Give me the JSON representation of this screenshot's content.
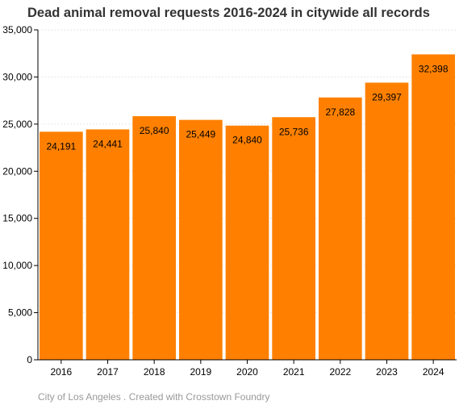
{
  "chart_data": {
    "type": "bar",
    "title": "Dead animal removal requests 2016-2024 in citywide all records",
    "categories": [
      "2016",
      "2017",
      "2018",
      "2019",
      "2020",
      "2021",
      "2022",
      "2023",
      "2024"
    ],
    "values": [
      24191,
      24441,
      25840,
      25449,
      24840,
      25736,
      27828,
      29397,
      32398
    ],
    "data_labels": [
      "24,191",
      "24,441",
      "25,840",
      "25,449",
      "24,840",
      "25,736",
      "27,828",
      "29,397",
      "32,398"
    ],
    "yticks": [
      0,
      5000,
      10000,
      15000,
      20000,
      25000,
      30000,
      35000
    ],
    "ytick_labels": [
      "0",
      "5,000",
      "10,000",
      "15,000",
      "20,000",
      "25,000",
      "30,000",
      "35,000"
    ],
    "ylim": [
      0,
      35000
    ],
    "xlabel": "",
    "ylabel": "",
    "grid": true,
    "bar_color": "#ff8000"
  },
  "credit": "City of Los Angeles . Created with Crosstown Foundry"
}
